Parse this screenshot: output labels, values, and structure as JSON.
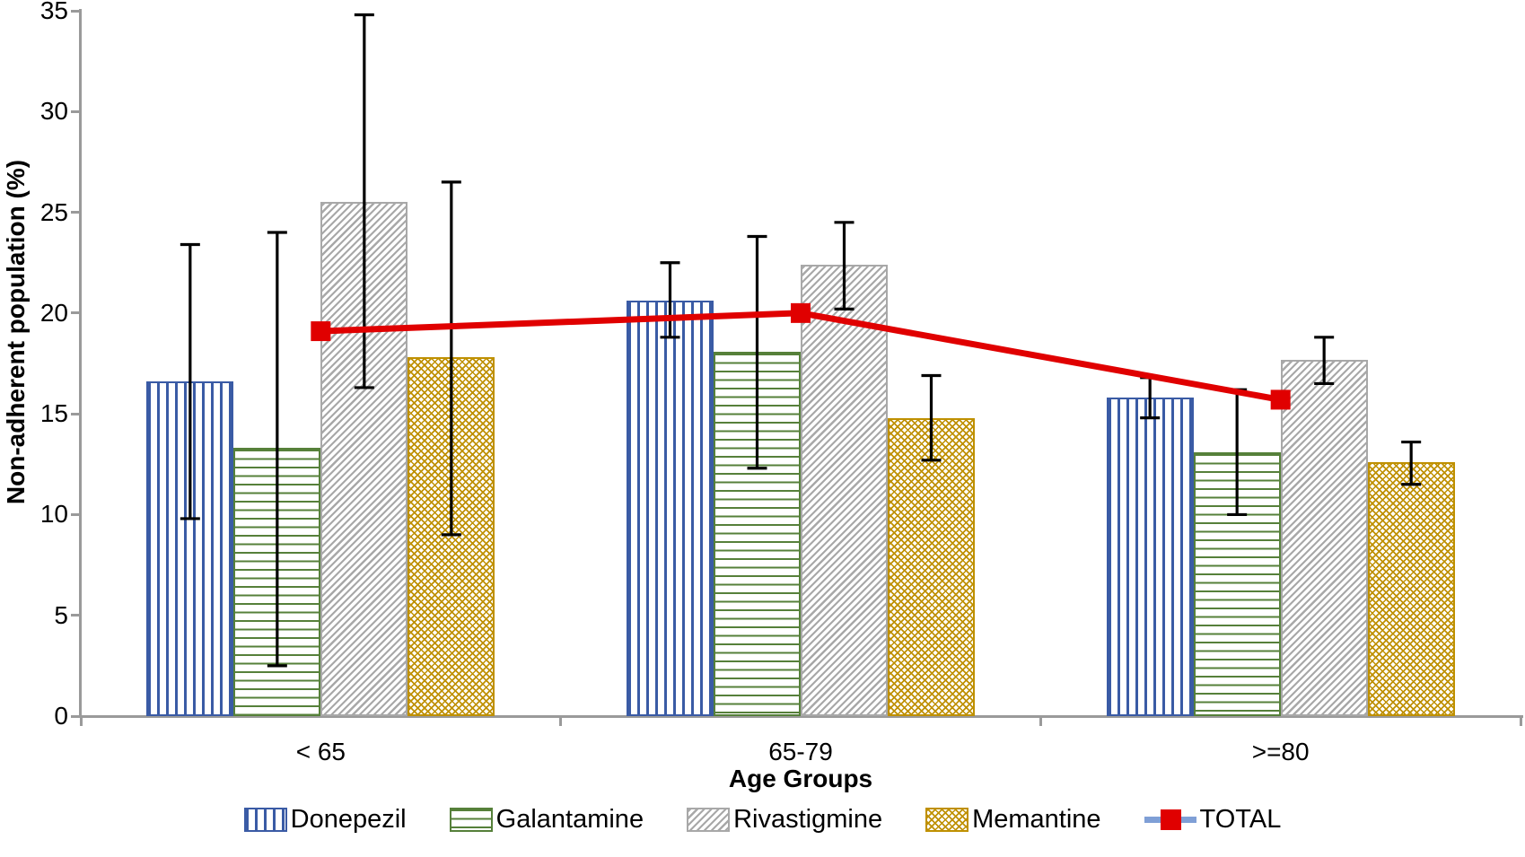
{
  "chart_data": {
    "type": "bar",
    "title": "",
    "xlabel": "Age Groups",
    "ylabel": "Non-adherent population (%)",
    "categories": [
      "< 65",
      "65-79",
      ">=80"
    ],
    "ylim": [
      0,
      35
    ],
    "yticks": [
      0,
      5,
      10,
      15,
      20,
      25,
      30,
      35
    ],
    "grid": false,
    "legend_position": "bottom-center",
    "bar_series": [
      {
        "name": "Donepezil",
        "pattern": "vertical-stripes",
        "color": "#3A5BA5",
        "values": [
          16.6,
          20.6,
          15.8
        ],
        "error_low": [
          9.8,
          18.8,
          14.8
        ],
        "error_high": [
          23.4,
          22.5,
          16.8
        ]
      },
      {
        "name": "Galantamine",
        "pattern": "horizontal-stripes",
        "color": "#56803A",
        "values": [
          13.3,
          18.1,
          13.1
        ],
        "error_low": [
          2.5,
          12.3,
          10.0
        ],
        "error_high": [
          24.0,
          23.8,
          16.2
        ]
      },
      {
        "name": "Rivastigmine",
        "pattern": "diagonal-stripes",
        "color": "#A8A8A8",
        "values": [
          25.5,
          22.4,
          17.7
        ],
        "error_low": [
          16.3,
          20.2,
          16.5
        ],
        "error_high": [
          34.8,
          24.5,
          18.8
        ]
      },
      {
        "name": "Memantine",
        "pattern": "crosshatch",
        "color": "#BF9000",
        "values": [
          17.8,
          14.8,
          12.6
        ],
        "error_low": [
          9.0,
          12.7,
          11.5
        ],
        "error_high": [
          26.5,
          16.9,
          13.6
        ]
      }
    ],
    "line_series": {
      "name": "TOTAL",
      "color": "#E00000",
      "legend_line_color": "#7F9FD6",
      "marker": "square",
      "values": [
        19.1,
        20.0,
        15.7
      ]
    },
    "error_bar_color": "#000000",
    "axis_color": "#9A9A9A"
  }
}
